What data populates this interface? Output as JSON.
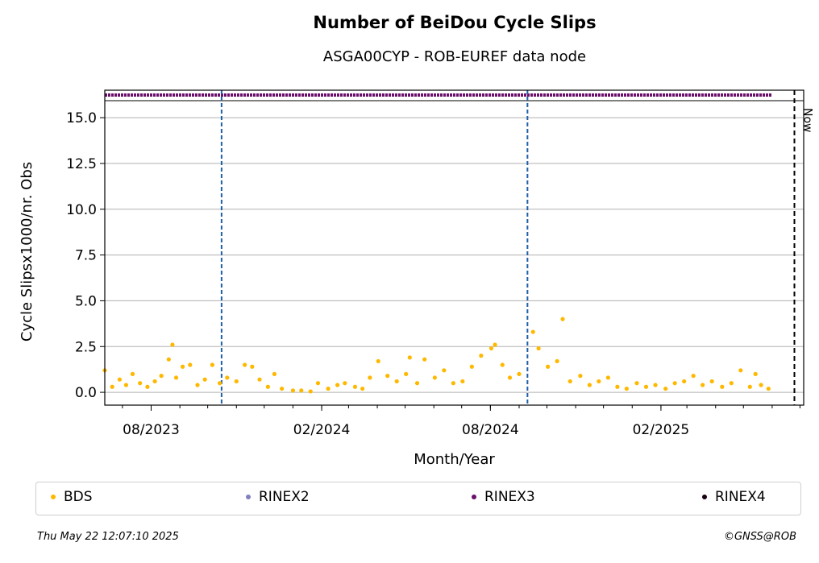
{
  "chart_data": {
    "type": "scatter",
    "title": "Number of BeiDou Cycle Slips",
    "subtitle": "ASGA00CYP - ROB-EUREF data node",
    "xlabel": "Month/Year",
    "ylabel": "Cycle Slipsx1000/nr. Obs",
    "x_range": [
      "2023-06-12",
      "2025-07-05"
    ],
    "ylim": [
      -0.7,
      16.5
    ],
    "y_ticks": [
      0.0,
      2.5,
      5.0,
      7.5,
      10.0,
      12.5,
      15.0
    ],
    "y_tick_labels": [
      "0.0",
      "2.5",
      "5.0",
      "7.5",
      "10.0",
      "12.5",
      "15.0"
    ],
    "x_tick_labels": [
      "08/2023",
      "02/2024",
      "08/2024",
      "02/2025"
    ],
    "x_tick_dates": [
      "2023-08-01",
      "2024-02-01",
      "2024-08-01",
      "2025-02-01"
    ],
    "grid": "horizontal",
    "vertical_markers": [
      {
        "date": "2023-10-16",
        "style": "dashed",
        "color": "#1f5fa8"
      },
      {
        "date": "2024-09-10",
        "style": "dashed",
        "color": "#1f5fa8"
      }
    ],
    "now_marker": {
      "date": "2025-06-25",
      "label": "Now"
    },
    "rinex3_band": {
      "start": "2023-06-12",
      "end": "2025-06-01",
      "color": "#6a0f6a"
    },
    "series": [
      {
        "name": "BDS",
        "color": "#FFB800",
        "points": [
          [
            "2023-06-12",
            1.2
          ],
          [
            "2023-06-20",
            0.3
          ],
          [
            "2023-06-28",
            0.7
          ],
          [
            "2023-07-05",
            0.4
          ],
          [
            "2023-07-12",
            1.0
          ],
          [
            "2023-07-20",
            0.5
          ],
          [
            "2023-07-28",
            0.3
          ],
          [
            "2023-08-05",
            0.6
          ],
          [
            "2023-08-12",
            0.9
          ],
          [
            "2023-08-20",
            1.8
          ],
          [
            "2023-08-24",
            2.6
          ],
          [
            "2023-08-28",
            0.8
          ],
          [
            "2023-09-04",
            1.4
          ],
          [
            "2023-09-12",
            1.5
          ],
          [
            "2023-09-20",
            0.4
          ],
          [
            "2023-09-28",
            0.7
          ],
          [
            "2023-10-06",
            1.5
          ],
          [
            "2023-10-14",
            0.5
          ],
          [
            "2023-10-22",
            0.8
          ],
          [
            "2023-11-01",
            0.6
          ],
          [
            "2023-11-10",
            1.5
          ],
          [
            "2023-11-18",
            1.4
          ],
          [
            "2023-11-26",
            0.7
          ],
          [
            "2023-12-05",
            0.3
          ],
          [
            "2023-12-12",
            1.0
          ],
          [
            "2023-12-20",
            0.2
          ],
          [
            "2024-01-01",
            0.1
          ],
          [
            "2024-01-10",
            0.1
          ],
          [
            "2024-01-20",
            0.05
          ],
          [
            "2024-01-28",
            0.5
          ],
          [
            "2024-02-08",
            0.2
          ],
          [
            "2024-02-18",
            0.4
          ],
          [
            "2024-02-26",
            0.5
          ],
          [
            "2024-03-08",
            0.3
          ],
          [
            "2024-03-16",
            0.2
          ],
          [
            "2024-03-24",
            0.8
          ],
          [
            "2024-04-02",
            1.7
          ],
          [
            "2024-04-12",
            0.9
          ],
          [
            "2024-04-22",
            0.6
          ],
          [
            "2024-05-02",
            1.0
          ],
          [
            "2024-05-06",
            1.9
          ],
          [
            "2024-05-14",
            0.5
          ],
          [
            "2024-05-22",
            1.8
          ],
          [
            "2024-06-02",
            0.8
          ],
          [
            "2024-06-12",
            1.2
          ],
          [
            "2024-06-22",
            0.5
          ],
          [
            "2024-07-02",
            0.6
          ],
          [
            "2024-07-12",
            1.4
          ],
          [
            "2024-07-22",
            2.0
          ],
          [
            "2024-08-02",
            2.4
          ],
          [
            "2024-08-06",
            2.6
          ],
          [
            "2024-08-14",
            1.5
          ],
          [
            "2024-08-22",
            0.8
          ],
          [
            "2024-09-01",
            1.0
          ],
          [
            "2024-09-16",
            3.3
          ],
          [
            "2024-09-22",
            2.4
          ],
          [
            "2024-10-02",
            1.4
          ],
          [
            "2024-10-12",
            1.7
          ],
          [
            "2024-10-18",
            4.0
          ],
          [
            "2024-10-26",
            0.6
          ],
          [
            "2024-11-06",
            0.9
          ],
          [
            "2024-11-16",
            0.4
          ],
          [
            "2024-11-26",
            0.6
          ],
          [
            "2024-12-06",
            0.8
          ],
          [
            "2024-12-16",
            0.3
          ],
          [
            "2024-12-26",
            0.2
          ],
          [
            "2025-01-06",
            0.5
          ],
          [
            "2025-01-16",
            0.3
          ],
          [
            "2025-01-26",
            0.4
          ],
          [
            "2025-02-06",
            0.2
          ],
          [
            "2025-02-16",
            0.5
          ],
          [
            "2025-02-26",
            0.6
          ],
          [
            "2025-03-08",
            0.9
          ],
          [
            "2025-03-18",
            0.4
          ],
          [
            "2025-03-28",
            0.6
          ],
          [
            "2025-04-08",
            0.3
          ],
          [
            "2025-04-18",
            0.5
          ],
          [
            "2025-04-28",
            1.2
          ],
          [
            "2025-05-08",
            0.3
          ],
          [
            "2025-05-14",
            1.0
          ],
          [
            "2025-05-20",
            0.4
          ],
          [
            "2025-05-28",
            0.2
          ]
        ]
      },
      {
        "name": "RINEX2",
        "color": "#8080c0",
        "points": []
      },
      {
        "name": "RINEX3",
        "color": "#6a0f6a",
        "points": []
      },
      {
        "name": "RINEX4",
        "color": "#1a0010",
        "points": []
      }
    ],
    "legend_position": "bottom"
  },
  "footer": {
    "timestamp": "Thu May 22 12:07:10 2025",
    "copyright": "©GNSS@ROB"
  }
}
